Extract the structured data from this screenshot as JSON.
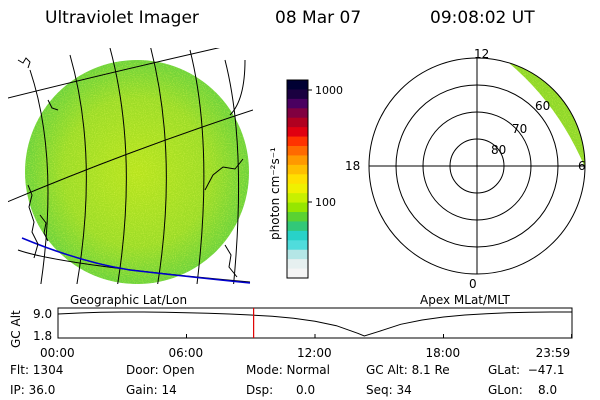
{
  "header": {
    "title": "Ultraviolet Imager",
    "date": "08 Mar 07",
    "time": "09:08:02 UT"
  },
  "colorbar": {
    "label": "photon cm⁻²s⁻¹",
    "ticks": [
      "1000",
      "100"
    ],
    "colors": [
      "#000033",
      "#1a0040",
      "#4a0060",
      "#800040",
      "#b00020",
      "#e00010",
      "#ff3300",
      "#ff6a00",
      "#ff9900",
      "#ffbf00",
      "#ffe000",
      "#f0f000",
      "#c8f000",
      "#96e600",
      "#5ad232",
      "#32c878",
      "#28d2c8",
      "#50dcdc",
      "#b4e6e6",
      "#e6f0f0",
      "#f5f5f5"
    ]
  },
  "left_panel": {
    "label": "Geographic Lat/Lon"
  },
  "right_panel": {
    "label": "Apex MLat/MLT",
    "mlt_labels": [
      "12",
      "18",
      "6",
      "0"
    ],
    "mlat_labels": [
      "80",
      "70",
      "60"
    ]
  },
  "timeline": {
    "ylabel": "GC Alt",
    "yticks": [
      "9.0",
      "1.8"
    ],
    "xticks": [
      "00:00",
      "06:00",
      "12:00",
      "18:00",
      "23:59"
    ],
    "current_hour": 9.134,
    "marker_color": "#e00000"
  },
  "info": {
    "flt": "Flt: 1304",
    "ip": "IP: 36.0",
    "door": "Door: Open",
    "gain": "Gain: 14",
    "mode": "Mode: Normal",
    "dsp": "Dsp:      0.0",
    "gcalt": "GC Alt: 8.1 Re",
    "seq": "Seq: 34",
    "glat": "GLat:  −47.1",
    "glon": "GLon:    8.0"
  },
  "chart_data": {
    "type": "line",
    "title": "",
    "xlabel": "",
    "ylabel": "GC Alt",
    "xlim": [
      0,
      24
    ],
    "ylim": [
      1.8,
      9.0
    ],
    "x": [
      0,
      1,
      2,
      3,
      4,
      5,
      6,
      7,
      8,
      9,
      10,
      11,
      12,
      13,
      14,
      14.3,
      15,
      16,
      17,
      18,
      19,
      20,
      21,
      22,
      23,
      23.98
    ],
    "series": [
      {
        "values": [
          8.4,
          8.7,
          8.9,
          9.0,
          9.0,
          8.9,
          8.8,
          8.6,
          8.4,
          8.1,
          7.7,
          7.1,
          6.2,
          4.9,
          2.6,
          1.8,
          3.2,
          5.3,
          6.6,
          7.5,
          8.1,
          8.5,
          8.8,
          8.9,
          9.0,
          9.0
        ]
      }
    ]
  }
}
